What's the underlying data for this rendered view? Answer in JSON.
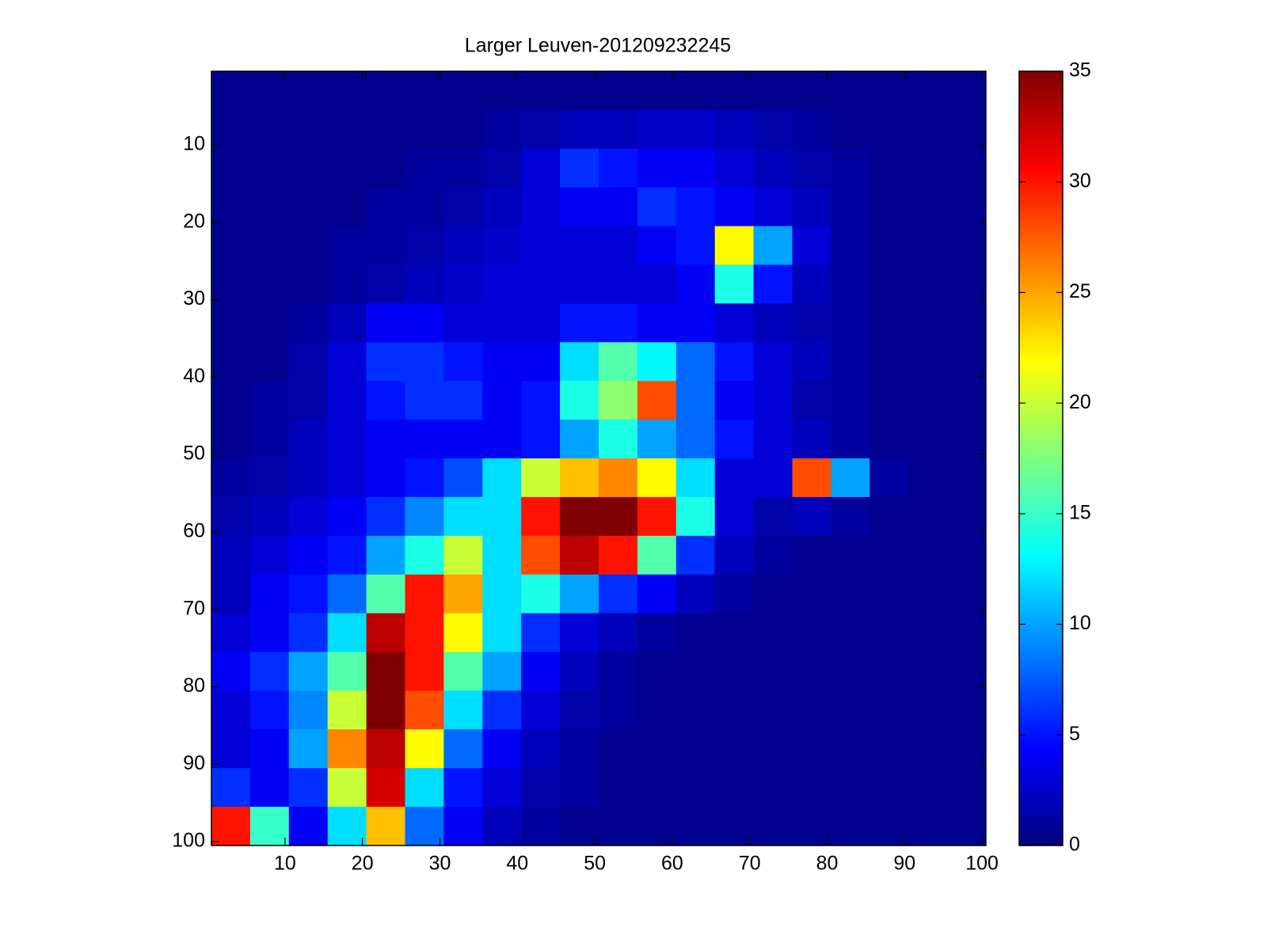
{
  "chart_data": {
    "type": "heatmap",
    "title": "Larger Leuven-201209232245",
    "x": [
      3,
      8,
      13,
      18,
      23,
      28,
      33,
      38,
      43,
      48,
      53,
      58,
      63,
      68,
      73,
      78,
      83,
      88,
      93,
      98
    ],
    "y": [
      3,
      8,
      13,
      18,
      23,
      28,
      33,
      38,
      43,
      48,
      53,
      58,
      63,
      68,
      73,
      78,
      83,
      88,
      93,
      98
    ],
    "z": [
      [
        0.5,
        0.5,
        0.5,
        0.5,
        0.5,
        0.5,
        0.5,
        0.5,
        0.5,
        0.5,
        0.5,
        0.5,
        0.5,
        0.5,
        0.5,
        0.5,
        0.5,
        0.5,
        0.5,
        0.5
      ],
      [
        0.5,
        0.5,
        0.5,
        0.5,
        0.5,
        0.5,
        0.5,
        1,
        1.5,
        2,
        2,
        2.5,
        2.5,
        2,
        1.5,
        1,
        0.5,
        0.5,
        0.5,
        0.5
      ],
      [
        0.5,
        0.5,
        0.5,
        0.5,
        0.5,
        1,
        1,
        1.5,
        3,
        6,
        5,
        4,
        4,
        3,
        2,
        1.5,
        1,
        0.5,
        0.5,
        0.5
      ],
      [
        0.5,
        0.5,
        0.5,
        0.5,
        1,
        1,
        1.5,
        2,
        3,
        4,
        4,
        6,
        5,
        4,
        3,
        2,
        1,
        0.5,
        0.5,
        0.5
      ],
      [
        0.5,
        0.5,
        0.5,
        1,
        1,
        1.5,
        2,
        2.5,
        3,
        3,
        3,
        4,
        5,
        22,
        10,
        3,
        1,
        0.5,
        0.5,
        0.5
      ],
      [
        0.5,
        0.5,
        0.5,
        1,
        1.5,
        2,
        2.5,
        3,
        3,
        3,
        3,
        3,
        4,
        14,
        5,
        2,
        1,
        0.5,
        0.5,
        0.5
      ],
      [
        0.5,
        0.5,
        1,
        2,
        4,
        4,
        3,
        3,
        3,
        5,
        5,
        4,
        4,
        3,
        2,
        1.5,
        1,
        0.5,
        0.5,
        0.5
      ],
      [
        0.5,
        0.5,
        1.5,
        3,
        6,
        6,
        5,
        4,
        4,
        12,
        16,
        13,
        8,
        5,
        3,
        2,
        1,
        0.5,
        0.5,
        0.5
      ],
      [
        0.5,
        1,
        1.5,
        3,
        5,
        6,
        6,
        4,
        5,
        14,
        18,
        28,
        8,
        4,
        3,
        1.5,
        1,
        0.5,
        0.5,
        0.5
      ],
      [
        0.5,
        1,
        2,
        3,
        4,
        4,
        4,
        4,
        5,
        10,
        14,
        10,
        8,
        5,
        3,
        2,
        1,
        0.5,
        0.5,
        0.5
      ],
      [
        1,
        1.5,
        2,
        3,
        4,
        5,
        7,
        12,
        20,
        24,
        26,
        22,
        12,
        3,
        3,
        28,
        10,
        1,
        0.5,
        0.5
      ],
      [
        1.5,
        2,
        3,
        4,
        6,
        9,
        12,
        12,
        30,
        35,
        35,
        30,
        14,
        3,
        1.5,
        2,
        1,
        0.5,
        0.5,
        0.5
      ],
      [
        2,
        3,
        4,
        5,
        10,
        14,
        20,
        12,
        28,
        33,
        30,
        16,
        6,
        2,
        1,
        0.5,
        0.5,
        0.5,
        0.5,
        0.5
      ],
      [
        2,
        4,
        5,
        8,
        16,
        30,
        25,
        12,
        14,
        10,
        6,
        4,
        2,
        1,
        0.5,
        0.5,
        0.5,
        0.5,
        0.5,
        0.5
      ],
      [
        3,
        4,
        6,
        12,
        33,
        30,
        22,
        12,
        6,
        3,
        2,
        1,
        0.5,
        0.5,
        0.5,
        0.5,
        0.5,
        0.5,
        0.5,
        0.5
      ],
      [
        4,
        6,
        10,
        16,
        35,
        30,
        16,
        10,
        4,
        2,
        1,
        0.5,
        0.5,
        0.5,
        0.5,
        0.5,
        0.5,
        0.5,
        0.5,
        0.5
      ],
      [
        3,
        5,
        9,
        20,
        35,
        28,
        12,
        6,
        3,
        1.5,
        1,
        0.5,
        0.5,
        0.5,
        0.5,
        0.5,
        0.5,
        0.5,
        0.5,
        0.5
      ],
      [
        3,
        4,
        10,
        26,
        33,
        22,
        8,
        4,
        2,
        1,
        0.5,
        0.5,
        0.5,
        0.5,
        0.5,
        0.5,
        0.5,
        0.5,
        0.5,
        0.5
      ],
      [
        6,
        4,
        6,
        20,
        32,
        12,
        5,
        3,
        1.5,
        1,
        0.5,
        0.5,
        0.5,
        0.5,
        0.5,
        0.5,
        0.5,
        0.5,
        0.5,
        0.5
      ],
      [
        30,
        15,
        4,
        12,
        24,
        8,
        4,
        2,
        1,
        0.5,
        0.5,
        0.5,
        0.5,
        0.5,
        0.5,
        0.5,
        0.5,
        0.5,
        0.5,
        0.5
      ]
    ],
    "xlim": [
      0.5,
      100.5
    ],
    "ylim": [
      0.5,
      100.5
    ],
    "y_reversed": true,
    "xticks": [
      10,
      20,
      30,
      40,
      50,
      60,
      70,
      80,
      90,
      100
    ],
    "yticks": [
      10,
      20,
      30,
      40,
      50,
      60,
      70,
      80,
      90,
      100
    ],
    "colormap": "jet",
    "clim": [
      0,
      35
    ],
    "cticks": [
      0,
      5,
      10,
      15,
      20,
      25,
      30,
      35
    ]
  }
}
